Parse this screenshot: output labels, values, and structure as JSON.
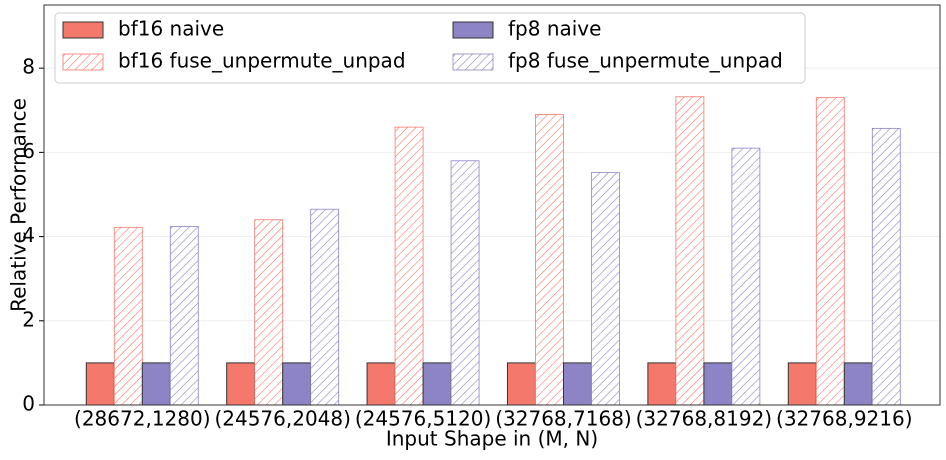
{
  "chart_data": {
    "type": "bar",
    "x_label": "Input Shape in (M, N)",
    "y_label": "Relative Performance",
    "categories": [
      "(28672,1280)",
      "(24576,2048)",
      "(24576,5120)",
      "(32768,7168)",
      "(32768,8192)",
      "(32768,9216)"
    ],
    "series": [
      {
        "name": "bf16 naive",
        "color": "#f4786c",
        "hatch": false,
        "values": [
          1,
          1,
          1,
          1,
          1,
          1
        ]
      },
      {
        "name": "bf16 fuse_unpermute_unpad",
        "color": "#f4786c",
        "hatch": true,
        "values": [
          4.22,
          4.4,
          6.6,
          6.9,
          7.32,
          7.3
        ]
      },
      {
        "name": "fp8 naive",
        "color": "#8c84c4",
        "hatch": false,
        "values": [
          1,
          1,
          1,
          1,
          1,
          1
        ]
      },
      {
        "name": "fp8 fuse_unpermute_unpad",
        "color": "#8c84c4",
        "hatch": true,
        "values": [
          4.24,
          4.65,
          5.8,
          5.52,
          6.1,
          6.57
        ]
      }
    ],
    "ylim": [
      0,
      9.5
    ],
    "yticks": [
      0,
      2,
      4,
      6,
      8
    ],
    "grid": true,
    "legend": "upper left"
  }
}
